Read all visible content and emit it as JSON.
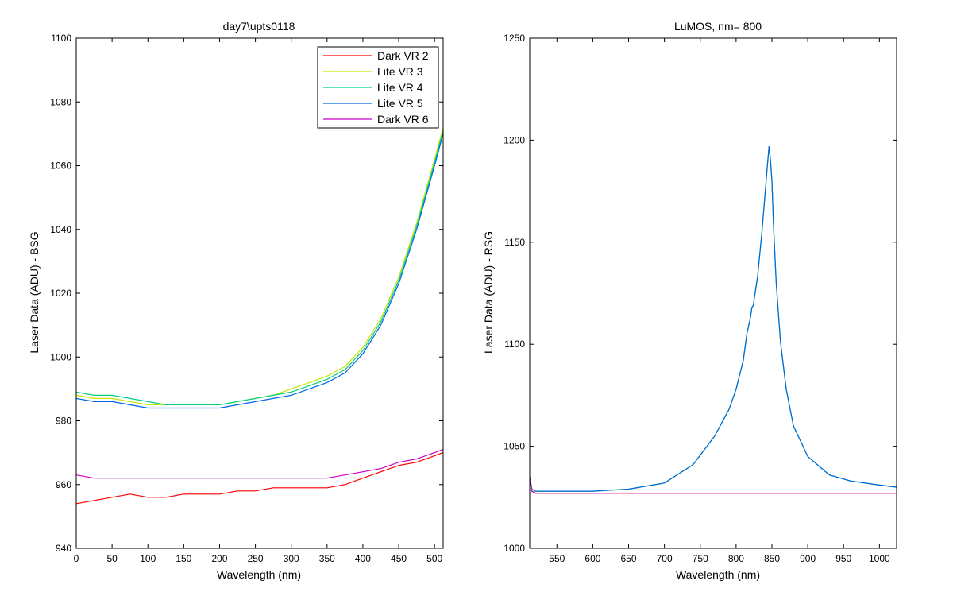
{
  "chart_data": [
    {
      "type": "line",
      "title": "day7\\upts0118",
      "xlabel": "Wavelength (nm)",
      "ylabel": "Laser Data (ADU) - BSG",
      "xlim": [
        0,
        512
      ],
      "ylim": [
        940,
        1100
      ],
      "xticks": [
        0,
        50,
        100,
        150,
        200,
        250,
        300,
        350,
        400,
        450,
        500
      ],
      "yticks": [
        940,
        960,
        980,
        1000,
        1020,
        1040,
        1060,
        1080,
        1100
      ],
      "legend": "top-right",
      "grid": false,
      "x": [
        0,
        25,
        50,
        75,
        100,
        125,
        150,
        175,
        200,
        225,
        250,
        275,
        300,
        325,
        350,
        375,
        400,
        425,
        450,
        475,
        500,
        512
      ],
      "series": [
        {
          "name": "Dark VR 2",
          "color": "#ff0000",
          "values": [
            954,
            955,
            956,
            957,
            956,
            956,
            957,
            957,
            957,
            958,
            958,
            959,
            959,
            959,
            959,
            960,
            962,
            964,
            966,
            967,
            969,
            970
          ]
        },
        {
          "name": "Lite VR 3",
          "color": "#c8e600",
          "values": [
            988,
            987,
            987,
            986,
            985,
            985,
            985,
            985,
            985,
            986,
            987,
            988,
            990,
            992,
            994,
            997,
            1003,
            1012,
            1025,
            1042,
            1062,
            1072
          ]
        },
        {
          "name": "Lite VR 4",
          "color": "#00d080",
          "values": [
            989,
            988,
            988,
            987,
            986,
            985,
            985,
            985,
            985,
            986,
            987,
            988,
            989,
            991,
            993,
            996,
            1002,
            1011,
            1024,
            1041,
            1061,
            1071
          ]
        },
        {
          "name": "Lite VR 5",
          "color": "#0066e6",
          "values": [
            987,
            986,
            986,
            985,
            984,
            984,
            984,
            984,
            984,
            985,
            986,
            987,
            988,
            990,
            992,
            995,
            1001,
            1010,
            1023,
            1040,
            1060,
            1070
          ]
        },
        {
          "name": "Dark VR 6",
          "color": "#cc00cc",
          "values": [
            963,
            962,
            962,
            962,
            962,
            962,
            962,
            962,
            962,
            962,
            962,
            962,
            962,
            962,
            962,
            963,
            964,
            965,
            967,
            968,
            970,
            971
          ]
        }
      ]
    },
    {
      "type": "line",
      "title": "LuMOS, nm= 800",
      "xlabel": "Wavelength (nm)",
      "ylabel": "Laser Data (ADU) - RSG",
      "xlim": [
        512,
        1024
      ],
      "ylim": [
        1000,
        1250
      ],
      "xticks": [
        550,
        600,
        650,
        700,
        750,
        800,
        850,
        900,
        950,
        1000
      ],
      "yticks": [
        1000,
        1050,
        1100,
        1150,
        1200,
        1250
      ],
      "grid": false,
      "x": [
        512,
        515,
        520,
        550,
        600,
        650,
        700,
        740,
        770,
        790,
        800,
        810,
        815,
        820,
        822,
        824,
        830,
        836,
        840,
        843,
        846,
        848,
        850,
        852,
        856,
        862,
        870,
        880,
        900,
        930,
        960,
        1000,
        1024
      ],
      "series": [
        {
          "color": "#c8e600",
          "values": [
            1035,
            1029,
            1028,
            1028,
            1028,
            1029,
            1032,
            1041,
            1055,
            1068,
            1078,
            1092,
            1105,
            1113,
            1118,
            1119,
            1133,
            1155,
            1172,
            1185,
            1197,
            1190,
            1180,
            1160,
            1130,
            1101,
            1078,
            1060,
            1045,
            1036,
            1033,
            1031,
            1030
          ]
        },
        {
          "color": "#00d080",
          "values": [
            1035,
            1029,
            1028,
            1028,
            1028,
            1029,
            1032,
            1041,
            1055,
            1068,
            1078,
            1092,
            1105,
            1113,
            1118,
            1119,
            1133,
            1155,
            1172,
            1185,
            1197,
            1190,
            1180,
            1160,
            1130,
            1101,
            1078,
            1060,
            1045,
            1036,
            1033,
            1031,
            1030
          ]
        },
        {
          "color": "#0066e6",
          "values": [
            1035,
            1029,
            1028,
            1028,
            1028,
            1029,
            1032,
            1041,
            1055,
            1068,
            1078,
            1092,
            1105,
            1113,
            1118,
            1119,
            1133,
            1155,
            1172,
            1185,
            1197,
            1190,
            1180,
            1160,
            1130,
            1101,
            1078,
            1060,
            1045,
            1036,
            1033,
            1031,
            1030
          ]
        },
        {
          "color": "#ff0000",
          "values": [
            1033,
            1028,
            1027,
            1027,
            1027,
            1027,
            1027,
            1027,
            1027,
            1027,
            1027,
            1027,
            1027,
            1027,
            1027,
            1027,
            1027,
            1027,
            1027,
            1027,
            1027,
            1027,
            1027,
            1027,
            1027,
            1027,
            1027,
            1027,
            1027,
            1027,
            1027,
            1027,
            1027
          ]
        },
        {
          "color": "#cc00cc",
          "values": [
            1034,
            1028,
            1027,
            1027,
            1027,
            1027,
            1027,
            1027,
            1027,
            1027,
            1027,
            1027,
            1027,
            1027,
            1027,
            1027,
            1027,
            1027,
            1027,
            1027,
            1027,
            1027,
            1027,
            1027,
            1027,
            1027,
            1027,
            1027,
            1027,
            1027,
            1027,
            1027,
            1027
          ]
        }
      ]
    }
  ]
}
